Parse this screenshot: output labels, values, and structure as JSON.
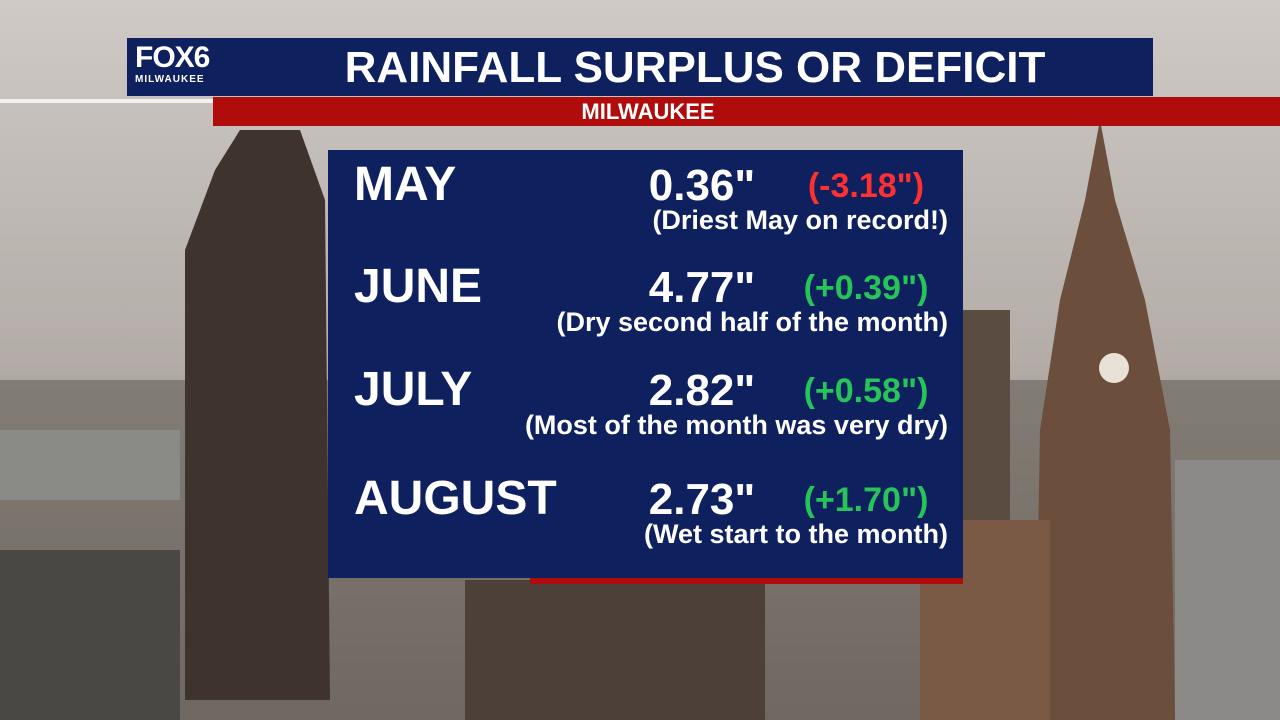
{
  "header": {
    "logo": "FOX6",
    "logo_sub": "MILWAUKEE",
    "title": "RAINFALL SURPLUS OR DEFICIT",
    "subtitle": "MILWAUKEE"
  },
  "table": {
    "rows": [
      [
        "MAY",
        "0.36\"",
        "(-3.18\")",
        "(Driest May on record!)"
      ],
      [
        "JUNE",
        "4.77\"",
        "(+0.39\")",
        "(Dry second half of the month)"
      ],
      [
        "JULY",
        "2.82\"",
        "(+0.58\")",
        "(Most of the month was very dry)"
      ],
      [
        "AUGUST",
        "2.73\"",
        "(+1.70\")",
        "(Wet start to the month)"
      ]
    ]
  }
}
